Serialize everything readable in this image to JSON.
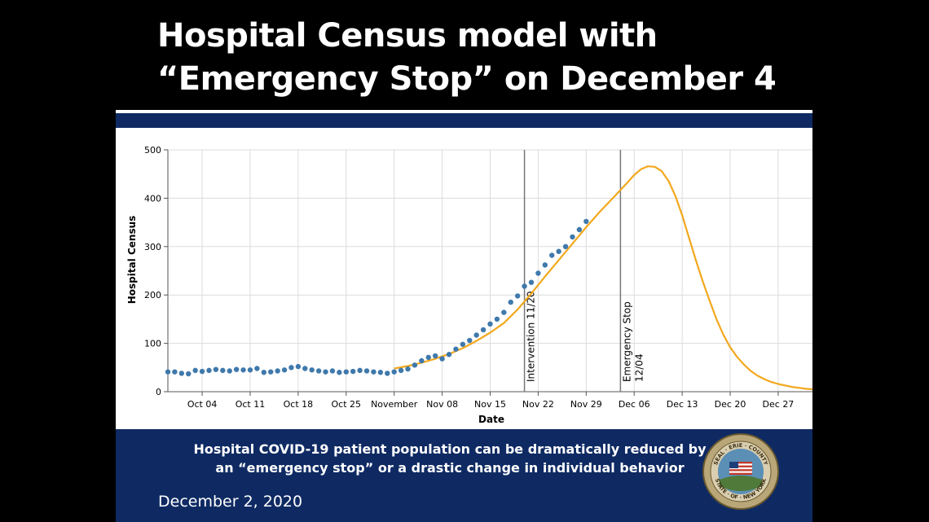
{
  "slide": {
    "title_line1": "Hospital Census model with",
    "title_line2": "“Emergency Stop” on December 4",
    "caption_line1": "Hospital COVID-19 patient population can be dramatically reduced by",
    "caption_line2": "an “emergency stop” or a drastic change in individual behavior",
    "date": "December 2, 2020",
    "seal_text_top": "SEAL · ERIE · COUNTY",
    "seal_text_bottom": "STATE · OF · NEW YORK"
  },
  "colors": {
    "background": "#000000",
    "band": "#0f2a63",
    "model_line": "#f2a81d",
    "observed_dots": "#3f79ac",
    "grid": "#dcdcdc",
    "marker_line": "#777777"
  },
  "chart_data": {
    "type": "line",
    "title": "",
    "xlabel": "Date",
    "ylabel": "Hospital Census",
    "x_range": [
      "2020-09-29",
      "2021-01-01"
    ],
    "ylim": [
      0,
      500
    ],
    "yticks": [
      0,
      100,
      200,
      300,
      400,
      500
    ],
    "xticks": [
      {
        "date": "2020-10-04",
        "label": "Oct 04"
      },
      {
        "date": "2020-10-11",
        "label": "Oct 11"
      },
      {
        "date": "2020-10-18",
        "label": "Oct 18"
      },
      {
        "date": "2020-10-25",
        "label": "Oct 25"
      },
      {
        "date": "2020-11-01",
        "label": "November"
      },
      {
        "date": "2020-11-08",
        "label": "Nov 08"
      },
      {
        "date": "2020-11-15",
        "label": "Nov 15"
      },
      {
        "date": "2020-11-22",
        "label": "Nov 22"
      },
      {
        "date": "2020-11-29",
        "label": "Nov 29"
      },
      {
        "date": "2020-12-06",
        "label": "Dec 06"
      },
      {
        "date": "2020-12-13",
        "label": "Dec 13"
      },
      {
        "date": "2020-12-20",
        "label": "Dec 20"
      },
      {
        "date": "2020-12-27",
        "label": "Dec 27"
      }
    ],
    "grid": true,
    "markers": [
      {
        "date": "2020-11-20",
        "label_lines": [
          "Intervention 11/20"
        ]
      },
      {
        "date": "2020-12-04",
        "label_lines": [
          "Emergency Stop",
          "12/04"
        ]
      }
    ],
    "series": [
      {
        "kind": "model_line",
        "points": [
          [
            "2020-11-01",
            48
          ],
          [
            "2020-11-03",
            53
          ],
          [
            "2020-11-05",
            60
          ],
          [
            "2020-11-07",
            68
          ],
          [
            "2020-11-09",
            78
          ],
          [
            "2020-11-11",
            90
          ],
          [
            "2020-11-13",
            105
          ],
          [
            "2020-11-15",
            122
          ],
          [
            "2020-11-17",
            142
          ],
          [
            "2020-11-19",
            170
          ],
          [
            "2020-11-21",
            203
          ],
          [
            "2020-11-23",
            238
          ],
          [
            "2020-11-25",
            272
          ],
          [
            "2020-11-27",
            306
          ],
          [
            "2020-11-29",
            340
          ],
          [
            "2020-12-01",
            372
          ],
          [
            "2020-12-03",
            402
          ],
          [
            "2020-12-05",
            432
          ],
          [
            "2020-12-06",
            448
          ],
          [
            "2020-12-07",
            460
          ],
          [
            "2020-12-08",
            466
          ],
          [
            "2020-12-09",
            465
          ],
          [
            "2020-12-10",
            456
          ],
          [
            "2020-12-11",
            436
          ],
          [
            "2020-12-12",
            405
          ],
          [
            "2020-12-13",
            365
          ],
          [
            "2020-12-14",
            318
          ],
          [
            "2020-12-15",
            272
          ],
          [
            "2020-12-16",
            228
          ],
          [
            "2020-12-17",
            188
          ],
          [
            "2020-12-18",
            150
          ],
          [
            "2020-12-19",
            118
          ],
          [
            "2020-12-20",
            92
          ],
          [
            "2020-12-21",
            72
          ],
          [
            "2020-12-22",
            56
          ],
          [
            "2020-12-23",
            43
          ],
          [
            "2020-12-24",
            33
          ],
          [
            "2020-12-25",
            26
          ],
          [
            "2020-12-26",
            20
          ],
          [
            "2020-12-27",
            16
          ],
          [
            "2020-12-28",
            13
          ],
          [
            "2020-12-29",
            10
          ],
          [
            "2020-12-30",
            8
          ],
          [
            "2020-12-31",
            6
          ],
          [
            "2021-01-01",
            5
          ]
        ]
      },
      {
        "kind": "observed_points",
        "points": [
          [
            "2020-09-29",
            41
          ],
          [
            "2020-09-30",
            41
          ],
          [
            "2020-10-01",
            38
          ],
          [
            "2020-10-02",
            37
          ],
          [
            "2020-10-03",
            44
          ],
          [
            "2020-10-04",
            42
          ],
          [
            "2020-10-05",
            44
          ],
          [
            "2020-10-06",
            46
          ],
          [
            "2020-10-07",
            44
          ],
          [
            "2020-10-08",
            43
          ],
          [
            "2020-10-09",
            46
          ],
          [
            "2020-10-10",
            45
          ],
          [
            "2020-10-11",
            45
          ],
          [
            "2020-10-12",
            48
          ],
          [
            "2020-10-13",
            40
          ],
          [
            "2020-10-14",
            41
          ],
          [
            "2020-10-15",
            43
          ],
          [
            "2020-10-16",
            45
          ],
          [
            "2020-10-17",
            50
          ],
          [
            "2020-10-18",
            52
          ],
          [
            "2020-10-19",
            48
          ],
          [
            "2020-10-20",
            45
          ],
          [
            "2020-10-21",
            43
          ],
          [
            "2020-10-22",
            41
          ],
          [
            "2020-10-23",
            43
          ],
          [
            "2020-10-24",
            40
          ],
          [
            "2020-10-25",
            41
          ],
          [
            "2020-10-26",
            42
          ],
          [
            "2020-10-27",
            44
          ],
          [
            "2020-10-28",
            43
          ],
          [
            "2020-10-29",
            41
          ],
          [
            "2020-10-30",
            40
          ],
          [
            "2020-10-31",
            38
          ],
          [
            "2020-11-01",
            41
          ],
          [
            "2020-11-02",
            44
          ],
          [
            "2020-11-03",
            47
          ],
          [
            "2020-11-04",
            55
          ],
          [
            "2020-11-05",
            64
          ],
          [
            "2020-11-06",
            71
          ],
          [
            "2020-11-07",
            74
          ],
          [
            "2020-11-08",
            68
          ],
          [
            "2020-11-09",
            77
          ],
          [
            "2020-11-10",
            88
          ],
          [
            "2020-11-11",
            98
          ],
          [
            "2020-11-12",
            106
          ],
          [
            "2020-11-13",
            117
          ],
          [
            "2020-11-14",
            128
          ],
          [
            "2020-11-15",
            140
          ],
          [
            "2020-11-16",
            150
          ],
          [
            "2020-11-17",
            164
          ],
          [
            "2020-11-18",
            185
          ],
          [
            "2020-11-19",
            198
          ],
          [
            "2020-11-20",
            218
          ],
          [
            "2020-11-21",
            226
          ],
          [
            "2020-11-22",
            245
          ],
          [
            "2020-11-23",
            262
          ],
          [
            "2020-11-24",
            282
          ],
          [
            "2020-11-25",
            290
          ],
          [
            "2020-11-26",
            300
          ],
          [
            "2020-11-27",
            320
          ],
          [
            "2020-11-28",
            335
          ],
          [
            "2020-11-29",
            352
          ]
        ]
      }
    ]
  }
}
